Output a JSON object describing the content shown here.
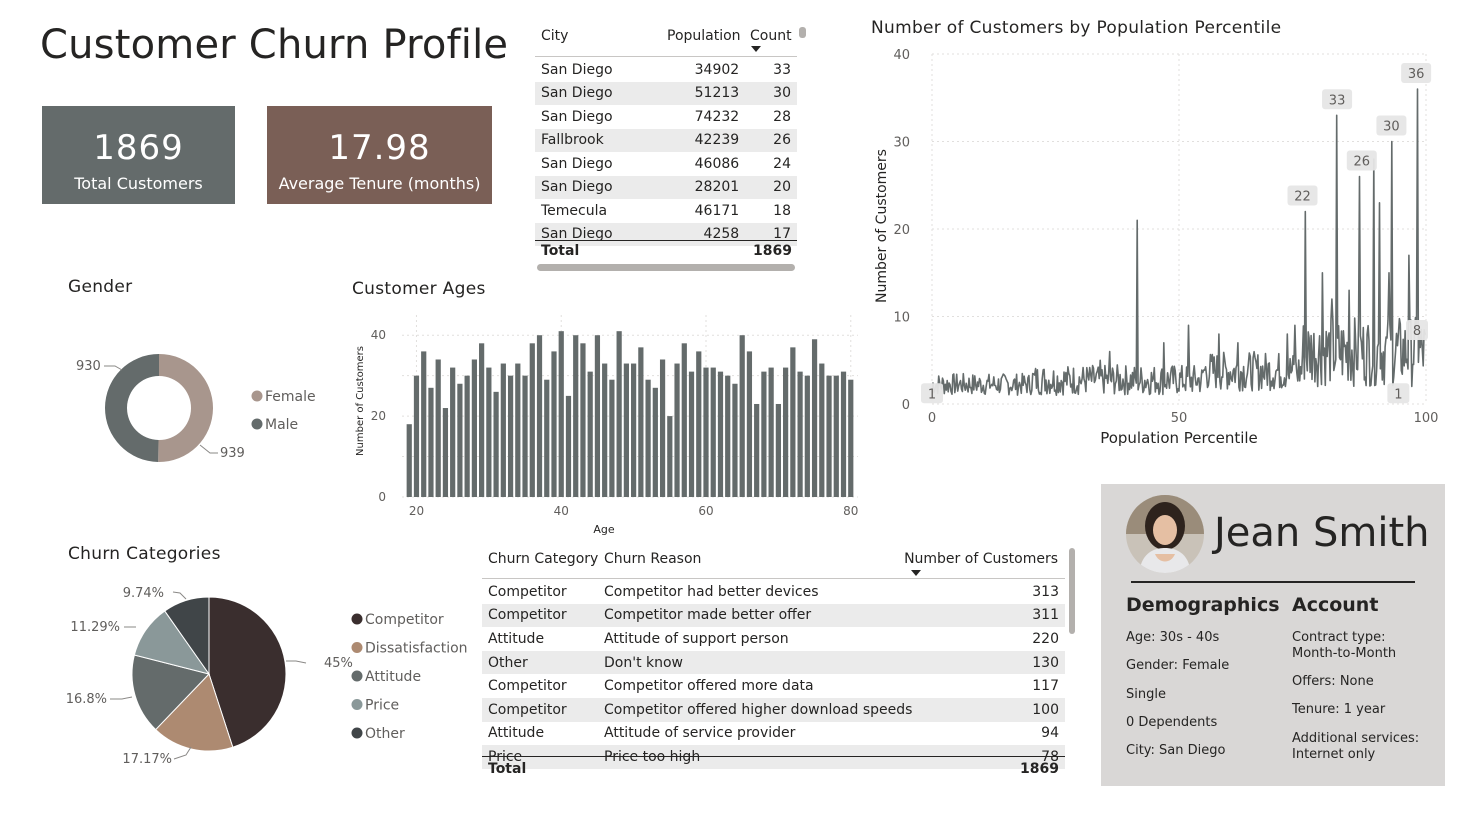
{
  "title": "Customer Churn Profile",
  "kpis": {
    "total_value": "1869",
    "total_label": "Total Customers",
    "tenure_value": "17.98",
    "tenure_label": "Average Tenure (months)"
  },
  "colors": {
    "slate": "#646b6b",
    "brown": "#7a5f56",
    "dark": "#3a2e2e",
    "tan": "#ad8a71",
    "light_slate": "#8a9899",
    "charcoal": "#404548"
  },
  "city_table": {
    "headers": [
      "City",
      "Population",
      "Count"
    ],
    "rows": [
      [
        "San Diego",
        "34902",
        "33"
      ],
      [
        "San Diego",
        "51213",
        "30"
      ],
      [
        "San Diego",
        "74232",
        "28"
      ],
      [
        "Fallbrook",
        "42239",
        "26"
      ],
      [
        "San Diego",
        "46086",
        "24"
      ],
      [
        "San Diego",
        "28201",
        "20"
      ],
      [
        "Temecula",
        "46171",
        "18"
      ],
      [
        "San Diego",
        "4258",
        "17"
      ]
    ],
    "total_label": "Total",
    "total_value": "1869"
  },
  "gender": {
    "title": "Gender",
    "label_female": "939",
    "label_male": "930",
    "legend": [
      "Female",
      "Male"
    ]
  },
  "ages": {
    "title": "Customer Ages",
    "xlabel": "Age",
    "ylabel": "Number of Customers"
  },
  "population": {
    "title": "Number of Customers by Population Percentile",
    "xlabel": "Population Percentile",
    "ylabel": "Number of Customers"
  },
  "churn_categories": {
    "title": "Churn Categories",
    "legend": [
      "Competitor",
      "Dissatisfaction",
      "Attitude",
      "Price",
      "Other"
    ]
  },
  "reason_table": {
    "headers": [
      "Churn Category",
      "Churn Reason",
      "Number of Customers"
    ],
    "rows": [
      [
        "Competitor",
        "Competitor had better devices",
        "313"
      ],
      [
        "Competitor",
        "Competitor made better offer",
        "311"
      ],
      [
        "Attitude",
        "Attitude of support person",
        "220"
      ],
      [
        "Other",
        "Don't know",
        "130"
      ],
      [
        "Competitor",
        "Competitor offered more data",
        "117"
      ],
      [
        "Competitor",
        "Competitor offered higher download speeds",
        "100"
      ],
      [
        "Attitude",
        "Attitude of service provider",
        "94"
      ],
      [
        "Price",
        "Price too high",
        "78"
      ]
    ],
    "total_label": "Total",
    "total_value": "1869"
  },
  "profile": {
    "name": "Jean Smith",
    "demographics_title": "Demographics",
    "account_title": "Account",
    "demographics": [
      "Age: 30s - 40s",
      "Gender: Female",
      "Single",
      "0 Dependents",
      "City: San Diego"
    ],
    "account": [
      "Contract type:",
      "Month-to-Month",
      "Offers: None",
      "Tenure: 1 year",
      "Additional services:",
      "Internet only"
    ]
  },
  "chart_data": [
    {
      "type": "pie",
      "title": "Gender",
      "categories": [
        "Female",
        "Male"
      ],
      "values": [
        939,
        930
      ],
      "donut": true,
      "legend": "right"
    },
    {
      "type": "bar",
      "title": "Customer Ages",
      "xlabel": "Age",
      "ylabel": "Number of Customers",
      "categories": [
        19,
        20,
        21,
        22,
        23,
        24,
        25,
        26,
        27,
        28,
        29,
        30,
        31,
        32,
        33,
        34,
        35,
        36,
        37,
        38,
        39,
        40,
        41,
        42,
        43,
        44,
        45,
        46,
        47,
        48,
        49,
        50,
        51,
        52,
        53,
        54,
        55,
        56,
        57,
        58,
        59,
        60,
        61,
        62,
        63,
        64,
        65,
        66,
        67,
        68,
        69,
        70,
        71,
        72,
        73,
        74,
        75,
        76,
        77,
        78,
        79,
        80
      ],
      "values": [
        18,
        30,
        36,
        27,
        34,
        22,
        32,
        28,
        30,
        34,
        38,
        32,
        26,
        33,
        30,
        33,
        30,
        38,
        40,
        29,
        36,
        41,
        25,
        40,
        38,
        31,
        40,
        33,
        29,
        41,
        33,
        33,
        37,
        29,
        27,
        34,
        20,
        33,
        38,
        31,
        36,
        32,
        32,
        31,
        30,
        28,
        40,
        36,
        23,
        31,
        32,
        23,
        32,
        37,
        31,
        30,
        39,
        33,
        30,
        30,
        31,
        29
      ],
      "xlim": [
        18,
        81
      ],
      "ylim": [
        0,
        45
      ],
      "xticks": [
        20,
        40,
        60,
        80
      ],
      "yticks": [
        0,
        20,
        40
      ]
    },
    {
      "type": "line",
      "title": "Number of Customers by Population Percentile",
      "xlabel": "Population Percentile",
      "ylabel": "Number of Customers",
      "xlim": [
        0,
        100
      ],
      "ylim": [
        0,
        40
      ],
      "xticks": [
        0,
        50,
        100
      ],
      "yticks": [
        0,
        10,
        20,
        30,
        40
      ],
      "data_labels": [
        {
          "x": 0,
          "y": 1,
          "label": "1"
        },
        {
          "x": 75,
          "y": 22,
          "label": "22"
        },
        {
          "x": 82,
          "y": 33,
          "label": "33"
        },
        {
          "x": 87,
          "y": 26,
          "label": "26"
        },
        {
          "x": 93,
          "y": 30,
          "label": "30"
        },
        {
          "x": 94,
          "y": 1,
          "label": "1"
        },
        {
          "x": 98,
          "y": 36,
          "label": "36"
        },
        {
          "x": 100,
          "y": 8,
          "label": "8"
        }
      ]
    },
    {
      "type": "pie",
      "title": "Churn Categories",
      "categories": [
        "Competitor",
        "Dissatisfaction",
        "Attitude",
        "Price",
        "Other"
      ],
      "values": [
        45,
        17.17,
        16.8,
        11.29,
        9.74
      ],
      "labels": [
        "45%",
        "17.17%",
        "16.8%",
        "11.29%",
        "9.74%"
      ],
      "legend": "right"
    }
  ]
}
